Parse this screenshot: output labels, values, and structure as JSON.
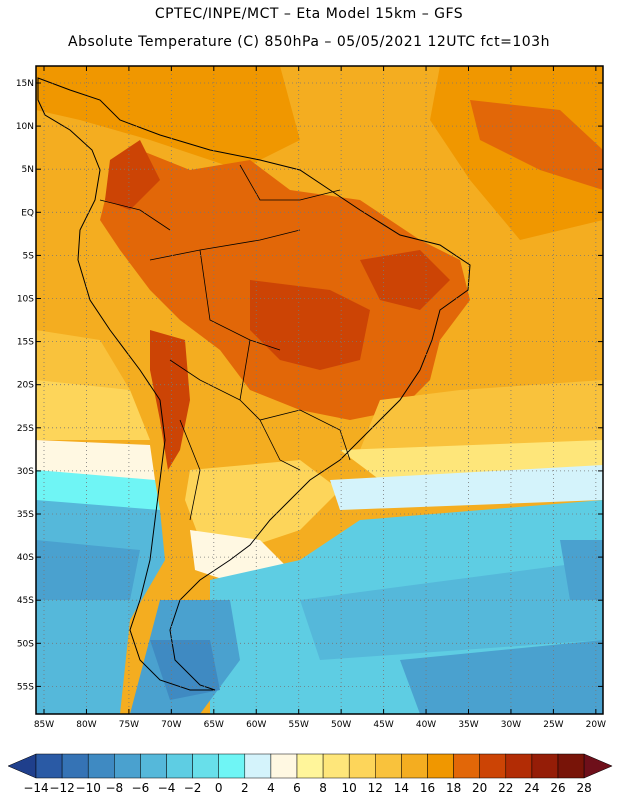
{
  "header": {
    "line1": "CPTEC/INPE/MCT –  Eta Model 15km – GFS",
    "line2": "Absolute Temperature (C) 850hPa – 05/05/2021 12UTC fct=103h"
  },
  "map": {
    "lat_labels": [
      "15N",
      "10N",
      "5N",
      "EQ",
      "5S",
      "10S",
      "15S",
      "20S",
      "25S",
      "30S",
      "35S",
      "40S",
      "45S",
      "50S",
      "55S"
    ],
    "lon_labels": [
      "85W",
      "80W",
      "75W",
      "70W",
      "65W",
      "60W",
      "55W",
      "50W",
      "45W",
      "40W",
      "35W",
      "30W",
      "25W",
      "20W"
    ]
  },
  "colorbar": {
    "labels": [
      "-14",
      "-12",
      "-10",
      "-8",
      "-6",
      "-4",
      "-2",
      "0",
      "2",
      "4",
      "6",
      "8",
      "10",
      "12",
      "14",
      "16",
      "18",
      "20",
      "22",
      "24",
      "26",
      "28"
    ],
    "colors": [
      "#1f3f8c",
      "#2a5aa5",
      "#3573b5",
      "#3f8ac2",
      "#4aa1cf",
      "#55b8da",
      "#5ecde3",
      "#68dfea",
      "#6ff5f5",
      "#d4f3fb",
      "#fff8e2",
      "#fff59a",
      "#fee67a",
      "#fdd55a",
      "#f9c23c",
      "#f4ad20",
      "#f09700",
      "#e26708",
      "#cc4405",
      "#b22c05",
      "#951d07",
      "#781408",
      "#6e0f1a"
    ]
  }
}
